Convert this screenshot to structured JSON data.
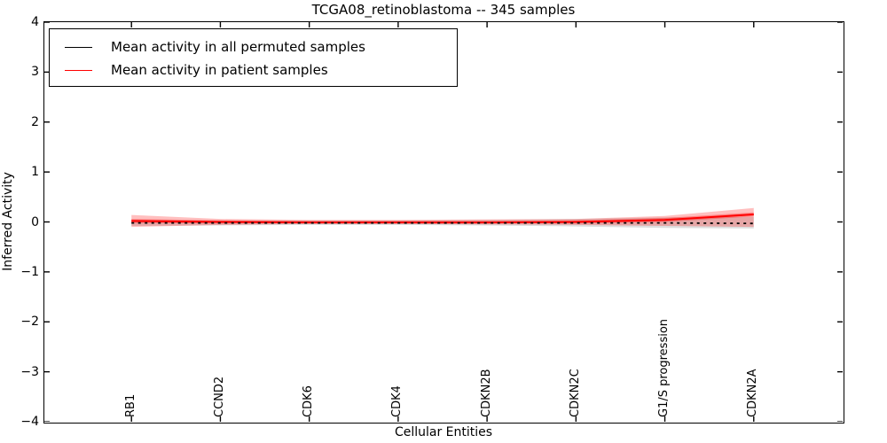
{
  "chart_data": {
    "type": "line",
    "title": "TCGA08_retinoblastoma -- 345 samples",
    "xlabel": "Cellular Entities",
    "ylabel": "Inferred Activity",
    "ylim": [
      -4,
      4
    ],
    "xlim": [
      0.02,
      9.0
    ],
    "ytick_values": [
      4,
      3,
      2,
      1,
      0,
      -1,
      -2,
      -3,
      -4
    ],
    "ytick_labels": [
      "4",
      "3",
      "2",
      "1",
      "0",
      "−1",
      "−2",
      "−3",
      "−4"
    ],
    "categories": [
      "RB1",
      "CCND2",
      "CDK6",
      "CDK4",
      "CDKN2B",
      "CDKN2C",
      "G1/S progression",
      "CDKN2A"
    ],
    "x": [
      1,
      2,
      3,
      4,
      5,
      6,
      7,
      8
    ],
    "grid": false,
    "legend_position": "upper left",
    "series": [
      {
        "key": "permuted-mean-line",
        "name": "Mean activity in all permuted samples",
        "color": "#000000",
        "style": "dashed",
        "width": 1.8,
        "values": [
          -0.02,
          -0.02,
          -0.02,
          -0.02,
          -0.02,
          -0.02,
          -0.02,
          -0.03
        ]
      },
      {
        "key": "patient-mean-line",
        "name": "Mean activity in patient samples",
        "color": "#ff0000",
        "style": "solid",
        "width": 2,
        "values": [
          0.02,
          0.0,
          -0.01,
          -0.01,
          -0.01,
          0.0,
          0.04,
          0.15
        ]
      }
    ],
    "bands": [
      {
        "name": "permuted-std-band",
        "color": "#888888",
        "opacity": 0.28,
        "upper": [
          0.04,
          0.03,
          0.03,
          0.03,
          0.04,
          0.06,
          0.09,
          0.1
        ],
        "lower": [
          -0.08,
          -0.07,
          -0.06,
          -0.06,
          -0.07,
          -0.09,
          -0.12,
          -0.13
        ]
      },
      {
        "name": "patient-std-band",
        "color": "#ff0000",
        "opacity": 0.25,
        "upper": [
          0.14,
          0.06,
          0.04,
          0.04,
          0.05,
          0.06,
          0.12,
          0.28
        ],
        "lower": [
          -0.1,
          -0.06,
          -0.04,
          -0.04,
          -0.05,
          -0.06,
          -0.08,
          -0.1
        ]
      },
      {
        "name": "patient-inner-band",
        "color": "#ff0000",
        "opacity": 0.3,
        "upper": [
          0.06,
          0.03,
          0.02,
          0.02,
          0.02,
          0.03,
          0.08,
          0.19
        ],
        "lower": [
          -0.02,
          -0.03,
          -0.02,
          -0.02,
          -0.02,
          -0.03,
          0.0,
          0.11
        ]
      }
    ]
  }
}
